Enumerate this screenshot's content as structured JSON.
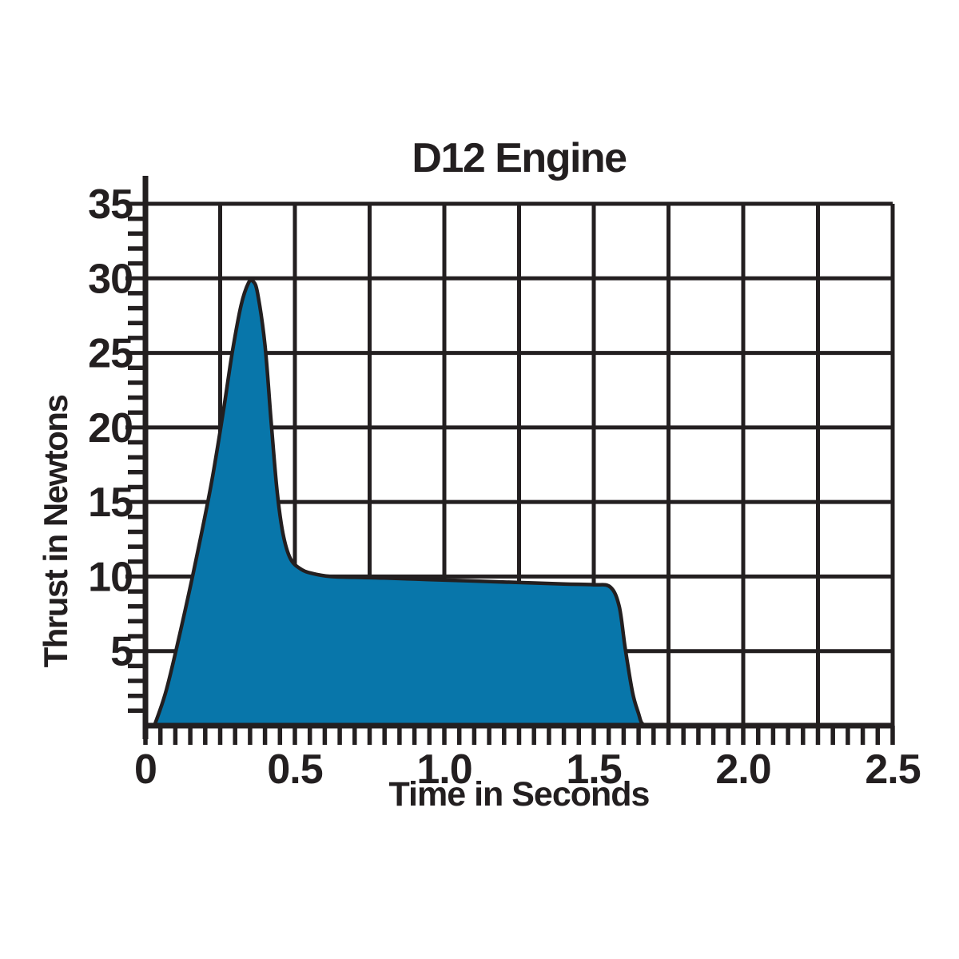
{
  "page": {
    "background_color": "#ffffff"
  },
  "chart_data": {
    "type": "area",
    "title": "D12 Engine",
    "xlabel": "Time in Seconds",
    "ylabel": "Thrust in Newtons",
    "xlim": [
      0,
      2.5
    ],
    "ylim": [
      0,
      35
    ],
    "grid": true,
    "grid_x_step": 0.25,
    "grid_y_step": 5,
    "minor_tick_x_step": 0.05,
    "minor_tick_y_step": 1,
    "x_tick_values": [
      0,
      0.5,
      1.0,
      1.5,
      2.0,
      2.5
    ],
    "x_tick_labels": [
      "0",
      "0.5",
      "1.0",
      "1.5",
      "2.0",
      "2.5"
    ],
    "y_tick_values": [
      5,
      10,
      15,
      20,
      25,
      30,
      35
    ],
    "y_tick_labels": [
      "5",
      "10",
      "15",
      "20",
      "25",
      "30",
      "35"
    ],
    "colors": {
      "fill": "#0876aa",
      "stroke": "#231f20",
      "grid": "#231f20",
      "text": "#231f20"
    },
    "series": [
      {
        "name": "Thrust",
        "units_x": "seconds",
        "units_y": "newtons",
        "points": [
          [
            0.03,
            0
          ],
          [
            0.07,
            2.4
          ],
          [
            0.12,
            6.6
          ],
          [
            0.17,
            11.2
          ],
          [
            0.22,
            16.2
          ],
          [
            0.26,
            21.0
          ],
          [
            0.29,
            25.0
          ],
          [
            0.32,
            28.2
          ],
          [
            0.345,
            29.7
          ],
          [
            0.36,
            29.8
          ],
          [
            0.375,
            29.0
          ],
          [
            0.4,
            25.5
          ],
          [
            0.42,
            20.5
          ],
          [
            0.44,
            15.8
          ],
          [
            0.46,
            12.9
          ],
          [
            0.485,
            11.2
          ],
          [
            0.52,
            10.5
          ],
          [
            0.56,
            10.2
          ],
          [
            0.62,
            10.0
          ],
          [
            0.7,
            9.95
          ],
          [
            0.8,
            9.9
          ],
          [
            0.95,
            9.8
          ],
          [
            1.1,
            9.7
          ],
          [
            1.25,
            9.6
          ],
          [
            1.4,
            9.5
          ],
          [
            1.5,
            9.45
          ],
          [
            1.555,
            9.3
          ],
          [
            1.585,
            8.0
          ],
          [
            1.605,
            5.2
          ],
          [
            1.63,
            2.2
          ],
          [
            1.65,
            0.8
          ],
          [
            1.66,
            0.2
          ],
          [
            1.675,
            0
          ]
        ]
      }
    ]
  }
}
